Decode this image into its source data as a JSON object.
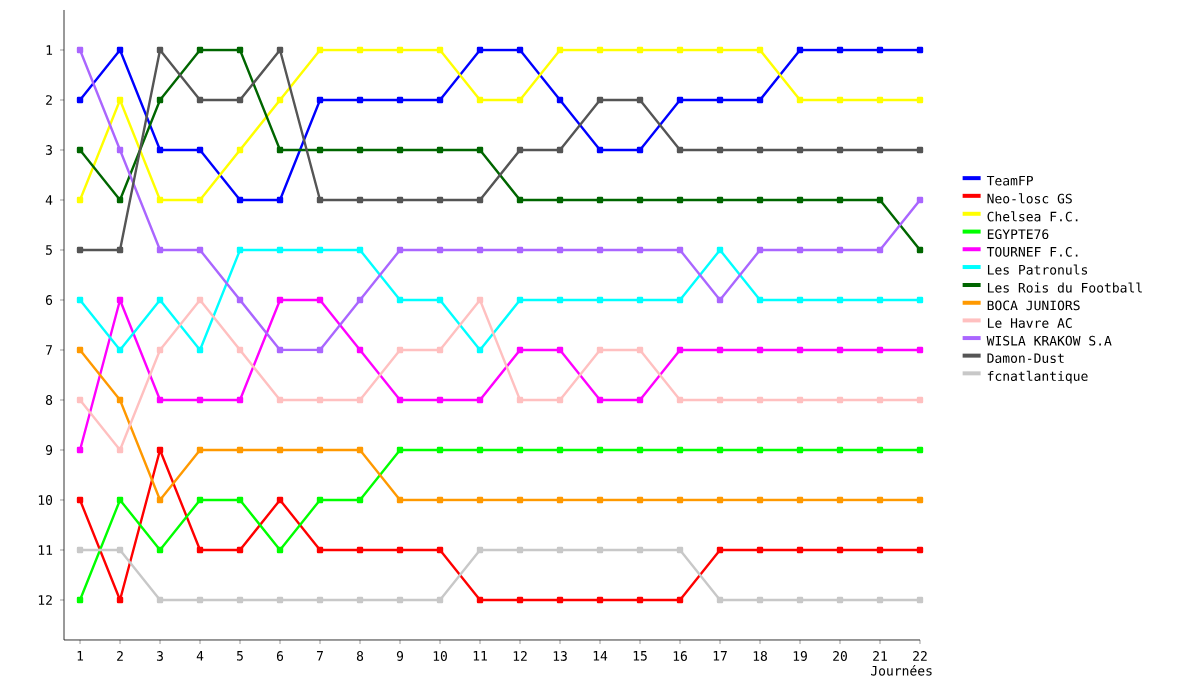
{
  "chart_data": {
    "type": "line",
    "xlabel": "Journées",
    "x": [
      1,
      2,
      3,
      4,
      5,
      6,
      7,
      8,
      9,
      10,
      11,
      12,
      13,
      14,
      15,
      16,
      17,
      18,
      19,
      20,
      21,
      22
    ],
    "xlim": [
      0.6,
      22
    ],
    "xticks": [
      1,
      2,
      3,
      4,
      5,
      6,
      7,
      8,
      9,
      10,
      11,
      12,
      13,
      14,
      15,
      16,
      17,
      18,
      19,
      20,
      21,
      22
    ],
    "ylim": [
      12.8,
      0.2
    ],
    "yticks": [
      1,
      2,
      3,
      4,
      5,
      6,
      7,
      8,
      9,
      10,
      11,
      12
    ],
    "grid": false,
    "legend": "right",
    "marker": "square",
    "line_style": "solid",
    "series": [
      {
        "name": "TeamFP",
        "color": "#0000ff",
        "values": [
          2,
          1,
          3,
          3,
          4,
          4,
          2,
          2,
          2,
          2,
          1,
          1,
          2,
          3,
          3,
          2,
          2,
          2,
          1,
          1,
          1,
          1
        ]
      },
      {
        "name": "Neo-losc GS",
        "color": "#ff0000",
        "values": [
          10,
          12,
          9,
          11,
          11,
          10,
          11,
          11,
          11,
          11,
          12,
          12,
          12,
          12,
          12,
          12,
          11,
          11,
          11,
          11,
          11,
          11
        ]
      },
      {
        "name": "Chelsea F.C.",
        "color": "#ffff00",
        "values": [
          4,
          2,
          4,
          4,
          3,
          2,
          1,
          1,
          1,
          1,
          2,
          2,
          1,
          1,
          1,
          1,
          1,
          1,
          2,
          2,
          2,
          2
        ]
      },
      {
        "name": "EGYPTE76",
        "color": "#00ff00",
        "values": [
          12,
          10,
          11,
          10,
          10,
          11,
          10,
          10,
          9,
          9,
          9,
          9,
          9,
          9,
          9,
          9,
          9,
          9,
          9,
          9,
          9,
          9
        ]
      },
      {
        "name": "TOURNEF F.C.",
        "color": "#ff00ff",
        "values": [
          9,
          6,
          8,
          8,
          8,
          6,
          6,
          7,
          8,
          8,
          8,
          7,
          7,
          8,
          8,
          7,
          7,
          7,
          7,
          7,
          7,
          7
        ]
      },
      {
        "name": "Les Patronuls",
        "color": "#00ffff",
        "values": [
          6,
          7,
          6,
          7,
          5,
          5,
          5,
          5,
          6,
          6,
          7,
          6,
          6,
          6,
          6,
          6,
          5,
          6,
          6,
          6,
          6,
          6
        ]
      },
      {
        "name": "Les Rois du Football",
        "color": "#006600",
        "values": [
          3,
          4,
          2,
          1,
          1,
          3,
          3,
          3,
          3,
          3,
          3,
          4,
          4,
          4,
          4,
          4,
          4,
          4,
          4,
          4,
          4,
          5
        ]
      },
      {
        "name": "BOCA JUNIORS",
        "color": "#ff9900",
        "values": [
          7,
          8,
          10,
          9,
          9,
          9,
          9,
          9,
          10,
          10,
          10,
          10,
          10,
          10,
          10,
          10,
          10,
          10,
          10,
          10,
          10,
          10
        ]
      },
      {
        "name": "Le Havre AC",
        "color": "#ffc0c0",
        "values": [
          8,
          9,
          7,
          6,
          7,
          8,
          8,
          8,
          7,
          7,
          6,
          8,
          8,
          7,
          7,
          8,
          8,
          8,
          8,
          8,
          8,
          8
        ]
      },
      {
        "name": "WISLA KRAKOW S.A",
        "color": "#aa66ff",
        "values": [
          1,
          3,
          5,
          5,
          6,
          7,
          7,
          6,
          5,
          5,
          5,
          5,
          5,
          5,
          5,
          5,
          6,
          5,
          5,
          5,
          5,
          4
        ]
      },
      {
        "name": "Damon-Dust",
        "color": "#555555",
        "values": [
          5,
          5,
          1,
          2,
          2,
          1,
          4,
          4,
          4,
          4,
          4,
          3,
          3,
          2,
          2,
          3,
          3,
          3,
          3,
          3,
          3,
          3
        ]
      },
      {
        "name": "fcnatlantique",
        "color": "#c8c8c8",
        "values": [
          11,
          11,
          12,
          12,
          12,
          12,
          12,
          12,
          12,
          12,
          11,
          11,
          11,
          11,
          11,
          11,
          12,
          12,
          12,
          12,
          12,
          12
        ]
      }
    ]
  }
}
